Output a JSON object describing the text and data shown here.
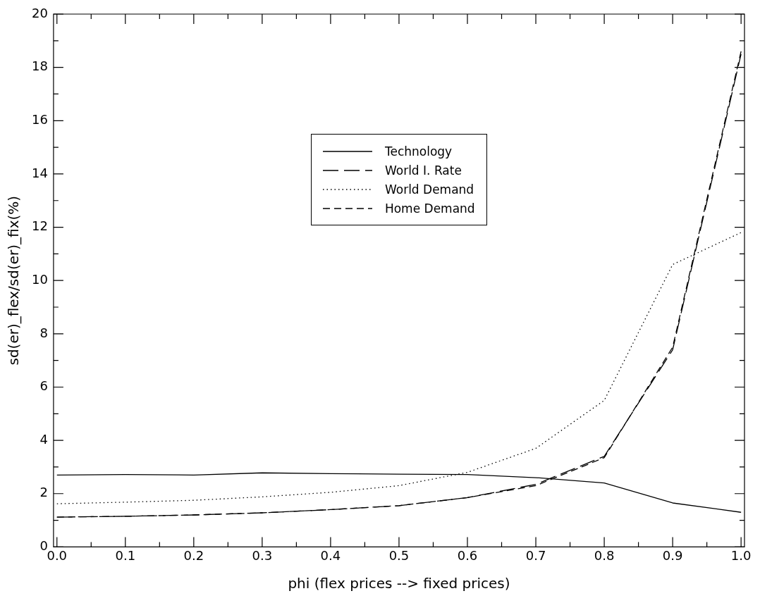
{
  "chart_data": {
    "type": "line",
    "xlabel": "phi (flex prices --> fixed prices)",
    "ylabel": "sd(er)_flex/sd(er)_fix(%)",
    "x": [
      0,
      0.1,
      0.2,
      0.3,
      0.4,
      0.5,
      0.6,
      0.7,
      0.8,
      0.9,
      1.0
    ],
    "series": [
      {
        "name": "Technology",
        "color": "#000000",
        "line_style": "solid",
        "values": [
          2.7,
          2.72,
          2.7,
          2.78,
          2.75,
          2.73,
          2.72,
          2.6,
          2.4,
          1.65,
          1.3
        ]
      },
      {
        "name": "World I. Rate",
        "color": "#000000",
        "line_style": "longdash",
        "values": [
          1.12,
          1.15,
          1.2,
          1.28,
          1.4,
          1.55,
          1.85,
          2.35,
          3.4,
          7.4,
          18.5
        ]
      },
      {
        "name": "World Demand",
        "color": "#000000",
        "line_style": "dotted",
        "values": [
          1.62,
          1.68,
          1.75,
          1.88,
          2.05,
          2.3,
          2.8,
          3.7,
          5.5,
          10.6,
          11.8
        ]
      },
      {
        "name": "Home Demand",
        "color": "#000000",
        "line_style": "dashed",
        "values": [
          1.12,
          1.15,
          1.2,
          1.28,
          1.4,
          1.55,
          1.85,
          2.3,
          3.35,
          7.5,
          18.6
        ]
      }
    ],
    "xlim": [
      -0.005,
      1.005
    ],
    "xticks": [
      {
        "value": 0,
        "label": "0.0"
      },
      {
        "value": 0.05,
        "label": null
      },
      {
        "value": 0.1,
        "label": "0.1"
      },
      {
        "value": 0.15,
        "label": null
      },
      {
        "value": 0.2,
        "label": "0.2"
      },
      {
        "value": 0.25,
        "label": null
      },
      {
        "value": 0.3,
        "label": "0.3"
      },
      {
        "value": 0.35,
        "label": null
      },
      {
        "value": 0.4,
        "label": "0.4"
      },
      {
        "value": 0.45,
        "label": null
      },
      {
        "value": 0.5,
        "label": "0.5"
      },
      {
        "value": 0.55,
        "label": null
      },
      {
        "value": 0.6,
        "label": "0.6"
      },
      {
        "value": 0.65,
        "label": null
      },
      {
        "value": 0.7,
        "label": "0.7"
      },
      {
        "value": 0.75,
        "label": null
      },
      {
        "value": 0.8,
        "label": "0.8"
      },
      {
        "value": 0.85,
        "label": null
      },
      {
        "value": 0.9,
        "label": "0.9"
      },
      {
        "value": 0.95,
        "label": null
      },
      {
        "value": 1,
        "label": "1.0"
      }
    ],
    "ylim": [
      0,
      20
    ],
    "yticks": [
      0,
      {
        "value": 1,
        "label": null
      },
      2,
      {
        "value": 3,
        "label": null
      },
      4,
      {
        "value": 5,
        "label": null
      },
      6,
      {
        "value": 7,
        "label": null
      },
      8,
      {
        "value": 9,
        "label": null
      },
      10,
      {
        "value": 11,
        "label": null
      },
      12,
      {
        "value": 13,
        "label": null
      },
      14,
      {
        "value": 15,
        "label": null
      },
      16,
      {
        "value": 17,
        "label": null
      },
      18,
      {
        "value": 19,
        "label": null
      },
      20
    ],
    "grid": false,
    "legend": "top",
    "marker": "none"
  }
}
